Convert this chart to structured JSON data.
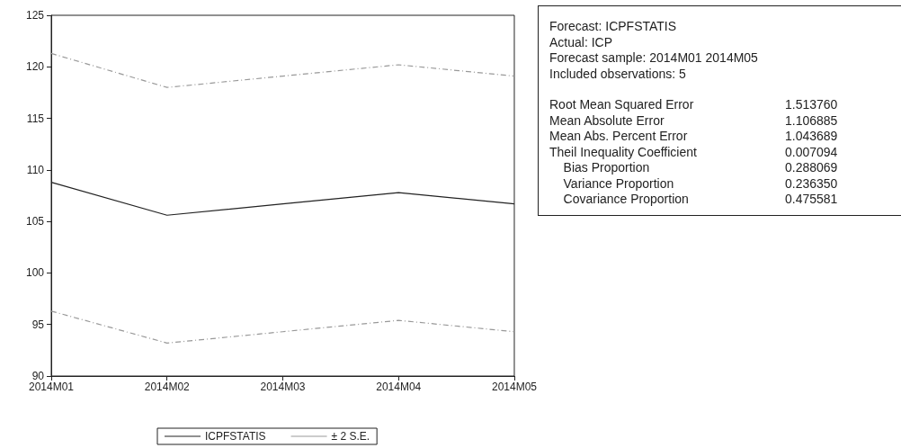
{
  "chart_data": [
    {
      "type": "line",
      "categories": [
        "2014M01",
        "2014M02",
        "2014M03",
        "2014M04",
        "2014M05"
      ],
      "ylim": [
        90,
        125
      ],
      "yticks": [
        90,
        95,
        100,
        105,
        110,
        115,
        120,
        125
      ],
      "grid": false,
      "legend": "bottom",
      "marker": "none",
      "series": [
        {
          "name": "ICPFSTATIS",
          "color": "#222222",
          "line_style": "solid",
          "values": [
            108.8,
            105.6,
            106.7,
            107.8,
            106.7
          ]
        },
        {
          "name": "± 2 S.E.",
          "color": "#999999",
          "line_style": "dashed",
          "values": [
            121.3,
            118.0,
            119.1,
            120.2,
            119.1
          ]
        },
        {
          "color": "#999999",
          "line_style": "dashed",
          "values": [
            96.3,
            93.2,
            94.3,
            95.4,
            94.3
          ]
        }
      ]
    },
    {
      "type": "other",
      "title": "Forecast: ICPFSTATIS",
      "annotations": [
        "Actual: ICP",
        "Forecast sample: 2014M01 2014M05",
        "Included observations: 5"
      ],
      "categories": [
        "Root Mean Squared Error",
        "Mean Absolute Error",
        "Mean Abs. Percent Error",
        "Theil Inequality Coefficient",
        "    Bias Proportion",
        "    Variance Proportion",
        "    Covariance Proportion"
      ],
      "value_labels": [
        "1.513760",
        "1.106885",
        "1.043689",
        "0.007094",
        "0.288069",
        "0.236350",
        "0.475581"
      ]
    }
  ]
}
